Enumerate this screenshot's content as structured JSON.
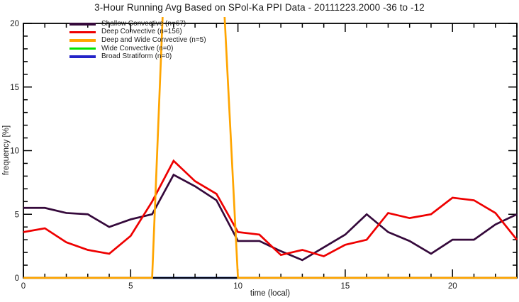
{
  "chart_data": {
    "type": "line",
    "title": "3-Hour Running Avg Based on SPol-Ka PPI Data - 20111223.2000 -36 to -12",
    "xlabel": "time (local)",
    "ylabel": "frequency [%]",
    "xlim": [
      0,
      23
    ],
    "ylim": [
      0,
      20
    ],
    "x_major_ticks": [
      0,
      5,
      10,
      15,
      20
    ],
    "y_major_ticks": [
      0,
      5,
      10,
      15,
      20
    ],
    "minor_tick_step": 1,
    "grid": false,
    "frame": true,
    "legend_position": "top-left",
    "x": [
      0,
      1,
      2,
      3,
      4,
      5,
      6,
      7,
      8,
      9,
      10,
      11,
      12,
      13,
      14,
      15,
      16,
      17,
      18,
      19,
      20,
      21,
      22,
      23
    ],
    "series": [
      {
        "name": "Shallow Convective (n=67)",
        "color": "#35093B",
        "values": [
          5.5,
          5.5,
          5.1,
          5.0,
          4.0,
          4.6,
          5.0,
          8.1,
          7.2,
          6.1,
          2.9,
          2.9,
          2.1,
          1.4,
          2.4,
          3.4,
          5.0,
          3.6,
          2.9,
          1.9,
          3.0,
          3.0,
          4.2,
          5.0
        ]
      },
      {
        "name": "Deep Convective (n=156)",
        "color": "#EE0000",
        "values": [
          3.6,
          3.9,
          2.8,
          2.2,
          1.9,
          3.3,
          6.0,
          9.2,
          7.6,
          6.6,
          3.6,
          3.4,
          1.8,
          2.2,
          1.7,
          2.6,
          3.0,
          5.1,
          4.7,
          5.0,
          6.3,
          6.1,
          5.1,
          3.0
        ]
      },
      {
        "name": "Deep and Wide Convective (n=5)",
        "color": "#FFA500",
        "values": [
          0,
          0,
          0,
          0,
          0,
          0,
          0,
          42,
          42,
          33,
          0,
          0,
          0,
          0,
          0,
          0,
          0,
          0,
          0,
          0,
          0,
          0,
          0,
          0
        ],
        "note": "spike between x=6 and x=10 clipped above plot top"
      },
      {
        "name": "Wide Convective (n=0)",
        "color": "#00E400",
        "values": [
          0,
          0,
          0,
          0,
          0,
          0,
          0,
          0,
          0,
          0,
          0,
          0,
          0,
          0,
          0,
          0,
          0,
          0,
          0,
          0,
          0,
          0,
          0,
          0
        ]
      },
      {
        "name": "Broad Stratiform (n=0)",
        "color": "#2424C8",
        "values": [
          0,
          0,
          0,
          0,
          0,
          0,
          0,
          0,
          0,
          0,
          0,
          0,
          0,
          0,
          0,
          0,
          0,
          0,
          0,
          0,
          0,
          0,
          0,
          0
        ]
      }
    ]
  }
}
